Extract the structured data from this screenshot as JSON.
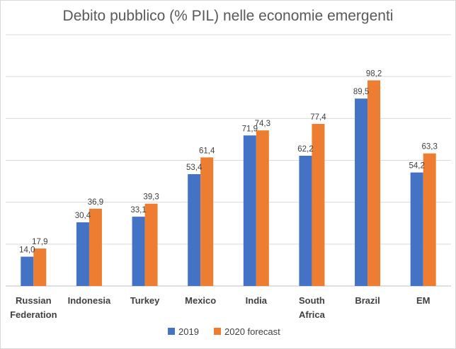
{
  "chart_data": {
    "type": "bar",
    "title": "Debito pubblico (% PIL) nelle economie emergenti",
    "xlabel": "",
    "ylabel": "",
    "categories": [
      [
        "Russian",
        "Federation"
      ],
      [
        "Indonesia"
      ],
      [
        "Turkey"
      ],
      [
        "Mexico"
      ],
      [
        "India"
      ],
      [
        "South",
        "Africa"
      ],
      [
        "Brazil"
      ],
      [
        "EM"
      ]
    ],
    "series": [
      {
        "name": "2019",
        "color": "#4472c4",
        "values": [
          14.0,
          30.4,
          33.1,
          53.4,
          71.9,
          62.2,
          89.5,
          54.2
        ]
      },
      {
        "name": "2020 forecast",
        "color": "#ed7d31",
        "values": [
          17.9,
          36.9,
          39.3,
          61.4,
          74.3,
          77.4,
          98.2,
          63.3
        ]
      }
    ],
    "data_labels": [
      [
        "14,0",
        "30,4",
        "33,1",
        "53,4",
        "71,9",
        "62,2",
        "89,5",
        "54,2"
      ],
      [
        "17,9",
        "36,9",
        "39,3",
        "61,4",
        "74,3",
        "77,4",
        "98,2",
        "63,3"
      ]
    ],
    "ylim": [
      0,
      120
    ],
    "grid": true,
    "legend": "bottom"
  }
}
